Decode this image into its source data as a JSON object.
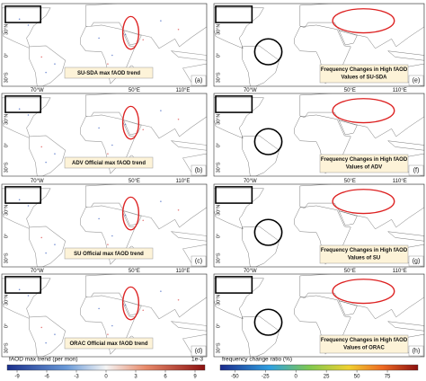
{
  "left_panels": [
    {
      "title": "SU-SDA max fAOD trend",
      "letter": "(a)"
    },
    {
      "title": "ADV Official max fAOD trend",
      "letter": "(b)"
    },
    {
      "title": "SU Official max fAOD trend",
      "letter": "(c)"
    },
    {
      "title": "ORAC Official max fAOD trend",
      "letter": "(d)"
    }
  ],
  "right_panels": [
    {
      "title": "Frequency Changes in High fAOD",
      "subtitle": "Values of SU-SDA",
      "letter": "(e)"
    },
    {
      "title": "Frequency Changes in High fAOD",
      "subtitle": "Values of ADV",
      "letter": "(f)"
    },
    {
      "title": "Frequency Changes in High fAOD",
      "subtitle": "Values of SU",
      "letter": "(g)"
    },
    {
      "title": "Frequency Changes in High fAOD",
      "subtitle": "Values of ORAC",
      "letter": "(h)"
    }
  ],
  "lat_labels": [
    "30°N",
    "0°",
    "30°S"
  ],
  "lon_labels": [
    "70°W",
    "50°E",
    "110°E"
  ],
  "colorbars": [
    {
      "label": "fAOD max trend (per mon)",
      "exponent": "1e-3",
      "lim": [
        -10,
        10
      ],
      "ticks": [
        -9,
        -6,
        -3,
        0,
        3,
        6,
        9
      ]
    },
    {
      "label": "frequency change ratio (%)",
      "lim": [
        -62,
        100
      ],
      "ticks": [
        -50,
        -25,
        0,
        25,
        50,
        75
      ]
    }
  ]
}
